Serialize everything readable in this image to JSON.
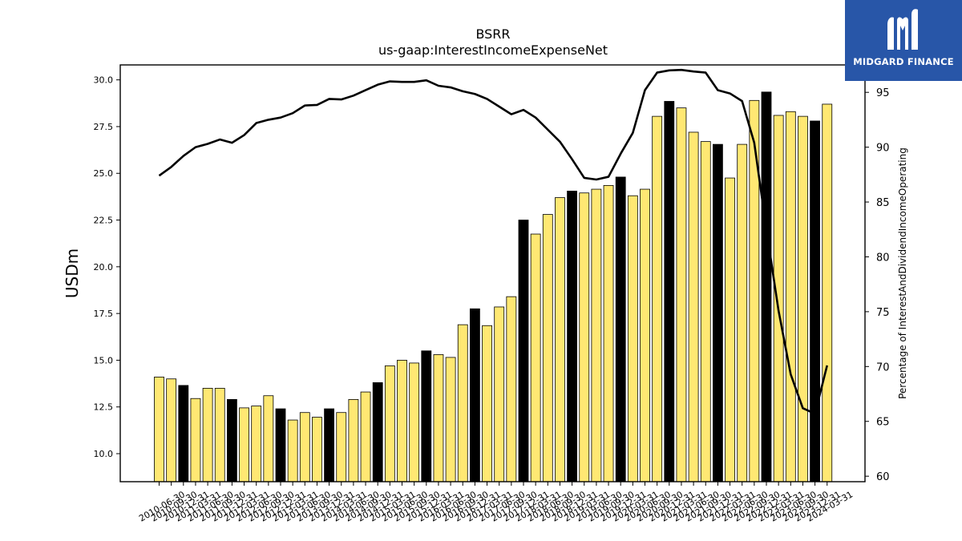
{
  "brand": {
    "name": "MIDGARD FINANCE"
  },
  "chart_data": {
    "type": "bar",
    "title": "BSRR",
    "subtitle": "us-gaap:InterestIncomeExpenseNet",
    "ylabel": "USDm",
    "y2label": "Percentage of InterestAndDividendIncomeOperating",
    "ylim": [
      8.5,
      30.8
    ],
    "y2lim": [
      59.5,
      97.5
    ],
    "yticks": [
      "10.0",
      "12.5",
      "15.0",
      "17.5",
      "20.0",
      "22.5",
      "25.0",
      "27.5",
      "30.0"
    ],
    "y2ticks": [
      "60",
      "65",
      "70",
      "75",
      "80",
      "85",
      "90",
      "95"
    ],
    "categories": [
      "2010-06-30",
      "2010-09-30",
      "2010-12-31",
      "2011-03-31",
      "2011-06-30",
      "2011-09-30",
      "2011-12-31",
      "2012-03-31",
      "2012-06-30",
      "2012-09-30",
      "2012-12-31",
      "2013-03-31",
      "2013-06-30",
      "2013-09-30",
      "2013-12-31",
      "2014-03-31",
      "2014-06-30",
      "2014-09-30",
      "2014-12-31",
      "2015-03-31",
      "2015-06-30",
      "2015-09-30",
      "2015-12-31",
      "2016-03-31",
      "2016-06-30",
      "2016-09-30",
      "2016-12-31",
      "2017-03-31",
      "2017-06-30",
      "2017-09-30",
      "2017-12-31",
      "2018-03-31",
      "2018-06-30",
      "2018-09-30",
      "2018-12-31",
      "2019-03-31",
      "2019-06-30",
      "2019-09-30",
      "2019-12-31",
      "2020-03-31",
      "2020-06-30",
      "2020-09-30",
      "2020-12-31",
      "2021-03-31",
      "2021-06-30",
      "2021-09-30",
      "2021-12-31",
      "2022-03-31",
      "2022-06-30",
      "2022-09-30",
      "2022-12-31",
      "2023-03-31",
      "2023-06-30",
      "2023-09-30",
      "2023-12-31",
      "2024-03-31"
    ],
    "series": [
      {
        "type": "bar",
        "values": [
          14.1,
          14.0,
          13.65,
          12.95,
          13.5,
          13.5,
          12.9,
          12.45,
          12.55,
          13.1,
          12.4,
          11.8,
          12.2,
          11.95,
          12.4,
          12.2,
          12.9,
          13.3,
          13.8,
          14.7,
          15.0,
          14.85,
          15.5,
          15.3,
          15.15,
          16.9,
          17.75,
          16.85,
          17.85,
          18.4,
          22.5,
          21.75,
          22.8,
          23.7,
          24.05,
          23.95,
          24.15,
          24.35,
          24.8,
          23.8,
          24.15,
          28.05,
          28.85,
          28.5,
          27.2,
          26.7,
          26.55,
          24.75,
          26.55,
          28.9,
          29.35,
          28.1,
          28.3,
          28.05,
          27.8,
          28.7
        ],
        "year_end_color": "#000000",
        "color": "#ffe873"
      },
      {
        "type": "line",
        "axis": "right",
        "values": [
          87.4,
          88.2,
          89.2,
          90.0,
          90.3,
          90.7,
          90.4,
          91.1,
          92.2,
          92.5,
          92.7,
          93.1,
          93.8,
          93.85,
          94.4,
          94.35,
          94.7,
          95.2,
          95.7,
          96.0,
          95.95,
          95.95,
          96.1,
          95.6,
          95.45,
          95.1,
          94.85,
          94.4,
          93.7,
          93.0,
          93.4,
          92.7,
          91.6,
          90.5,
          88.9,
          87.2,
          87.05,
          87.3,
          89.4,
          91.3,
          95.2,
          96.8,
          97.0,
          97.05,
          96.9,
          96.8,
          95.2,
          94.9,
          94.2,
          90.4,
          82.5,
          75.1,
          69.3,
          66.2,
          65.7,
          70.1
        ],
        "color": "#000000"
      }
    ],
    "grid": false,
    "legend": "none"
  }
}
